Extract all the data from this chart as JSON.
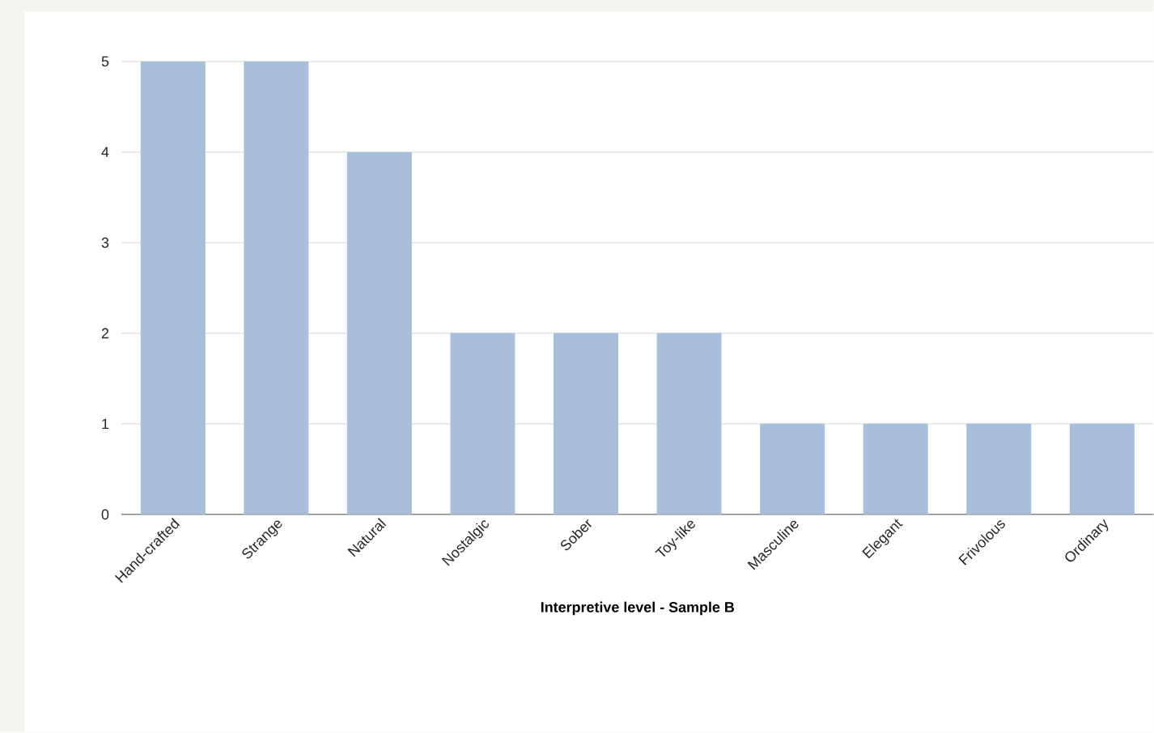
{
  "chart_data": {
    "type": "bar",
    "xlabel": "**Interpretive level - Sample B**",
    "categories": [
      "Hand-crafted",
      "Strange",
      "Natural",
      "Nostalgic",
      "Sober",
      "Toy-like",
      "Masculine",
      "Elegant",
      "Frivolous",
      "Ordinary"
    ],
    "values": [
      5,
      5,
      4,
      2,
      2,
      2,
      1,
      1,
      1,
      1
    ],
    "color": "#a8bed9",
    "ylim": [
      0,
      5
    ],
    "yticks": [
      0,
      1,
      2,
      3,
      4,
      5
    ],
    "grid": "y"
  }
}
